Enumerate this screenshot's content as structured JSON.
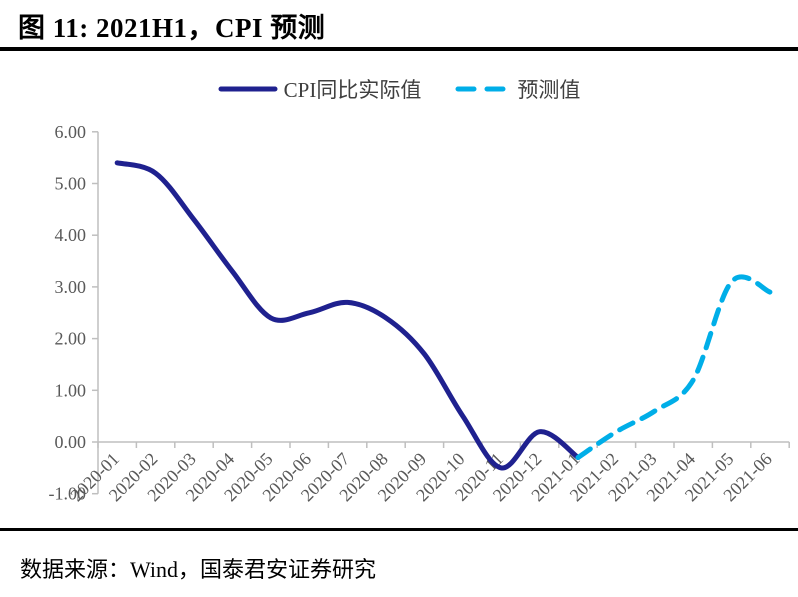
{
  "header": {
    "title": "图 11: 2021H1，CPI 预测"
  },
  "legend": {
    "actual_label": "CPI同比实际值",
    "forecast_label": "预测值"
  },
  "footer": {
    "source": "数据来源：Wind，国泰君安证券研究"
  },
  "colors": {
    "actual_line": "#1F218F",
    "forecast_line": "#00AEE8",
    "axis_line": "#BFBFBF",
    "axis_text": "#595959",
    "rule": "#000000"
  },
  "chart_data": {
    "type": "line",
    "title": "2021H1，CPI 预测",
    "categories": [
      "2020-01",
      "2020-02",
      "2020-03",
      "2020-04",
      "2020-05",
      "2020-06",
      "2020-07",
      "2020-08",
      "2020-09",
      "2020-10",
      "2020-11",
      "2020-12",
      "2021-01",
      "2021-02",
      "2021-03",
      "2021-04",
      "2021-05",
      "2021-06"
    ],
    "series": [
      {
        "name": "CPI同比实际值",
        "style": "solid",
        "color": "#1F218F",
        "x": [
          "2020-01",
          "2020-02",
          "2020-03",
          "2020-04",
          "2020-05",
          "2020-06",
          "2020-07",
          "2020-08",
          "2020-09",
          "2020-10",
          "2020-11",
          "2020-12",
          "2021-01"
        ],
        "values": [
          5.4,
          5.2,
          4.3,
          3.3,
          2.4,
          2.5,
          2.7,
          2.4,
          1.7,
          0.5,
          -0.5,
          0.2,
          -0.3
        ]
      },
      {
        "name": "预测值",
        "style": "dashed",
        "color": "#00AEE8",
        "x": [
          "2021-01",
          "2021-02",
          "2021-03",
          "2021-04",
          "2021-05",
          "2021-06"
        ],
        "values": [
          -0.3,
          0.2,
          0.6,
          1.2,
          3.1,
          2.9
        ]
      }
    ],
    "xlabel": "",
    "ylabel": "",
    "ylim": [
      -1,
      6
    ],
    "ytick_values": [
      6,
      5,
      4,
      3,
      2,
      1,
      0,
      -1
    ],
    "ytick_labels": [
      "6.00",
      "5.00",
      "4.00",
      "3.00",
      "2.00",
      "1.00",
      "0.00",
      "-1.00"
    ],
    "grid": false,
    "legend_position": "top",
    "x_axis_cross": 0
  }
}
